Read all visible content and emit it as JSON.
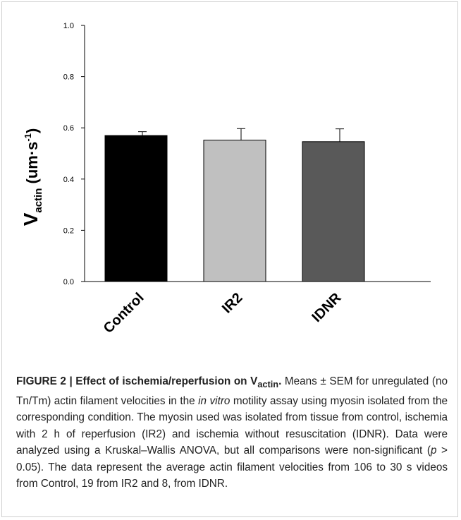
{
  "chart_data": {
    "type": "bar",
    "categories": [
      "Control",
      "IR2",
      "IDNR"
    ],
    "values": [
      0.57,
      0.552,
      0.546
    ],
    "errors": [
      0.015,
      0.045,
      0.05
    ],
    "colors": [
      "#000000",
      "#c0c0c0",
      "#595959"
    ],
    "ylabel_main": "V",
    "ylabel_sub": "actin",
    "ylabel_unit": " (um·s",
    "ylabel_sup": "-1",
    "ylabel_close": ")",
    "ylim": [
      0,
      1.0
    ],
    "yticks": [
      "0.0",
      "0.2",
      "0.4",
      "0.6",
      "0.8",
      "1.0"
    ],
    "grid": false
  },
  "caption": {
    "title": "FIGURE 2 | Effect of ischemia/reperfusion on V",
    "title_sub": "actin",
    "title_end": ".",
    "p1": " Means ± SEM for unregulated (no Tn/Tm) actin filament velocities in the ",
    "em": "in vitro",
    "p2": " motility assay using myosin isolated from the corresponding condition. The myosin used was isolated from tissue from control, ischemia with 2 h of reperfusion (IR2) and ischemia without resuscitation (IDNR). Data were analyzed using a Kruskal–Wallis ANOVA, but all comparisons were non-significant (",
    "p_var": "p",
    "p3": " > 0.05). The data represent the average actin filament velocities from 106 to 30 s videos from Control, 19 from IR2 and 8, from IDNR."
  }
}
